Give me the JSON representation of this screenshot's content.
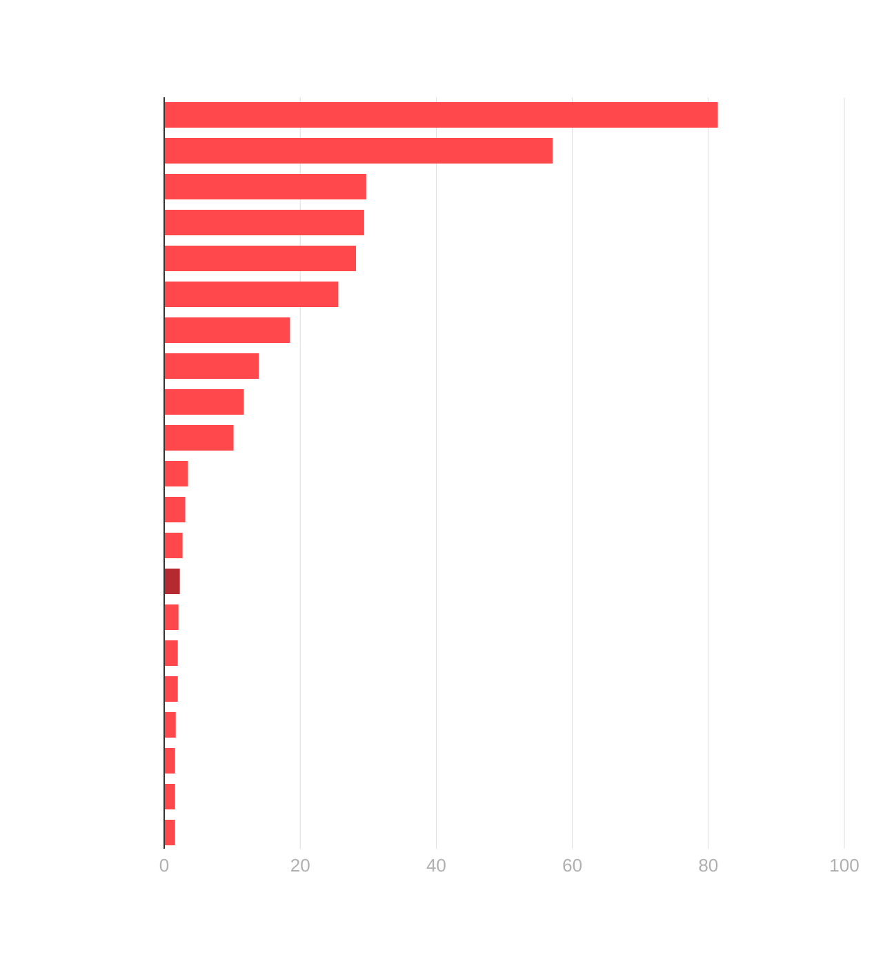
{
  "chart_data": {
    "type": "bar",
    "orientation": "horizontal",
    "title": "",
    "xlabel": "",
    "ylabel": "",
    "xlim": [
      0,
      100
    ],
    "x_ticks": [
      0,
      20,
      40,
      60,
      80,
      100
    ],
    "x_tick_labels": [
      "0",
      "20",
      "40",
      "60",
      "80",
      "100"
    ],
    "grid": "vertical",
    "legend": "none",
    "values": [
      81.4,
      57.1,
      29.7,
      29.4,
      28.2,
      25.6,
      18.5,
      13.9,
      11.7,
      10.2,
      3.5,
      3.1,
      2.7,
      2.3,
      2.1,
      2.0,
      2.0,
      1.7,
      1.6,
      1.6,
      1.6
    ],
    "highlight_index": 13,
    "colors": {
      "bar": "#ff4245",
      "highlight": "#b52a31",
      "axis": "#333333",
      "grid": "#dddddd",
      "tick_text": "#b0b0b0"
    }
  }
}
